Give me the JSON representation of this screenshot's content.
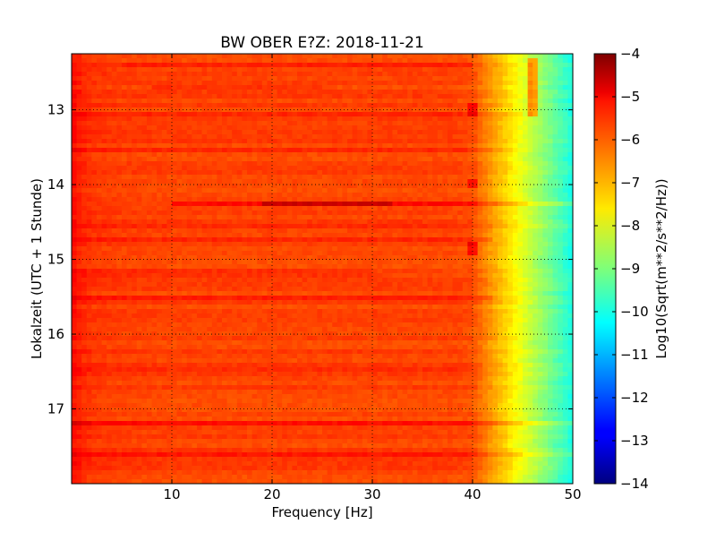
{
  "chart_data": {
    "type": "heatmap",
    "title": "BW OBER E?Z: 2018-11-21",
    "xlabel": "Frequency [Hz]",
    "ylabel": "Lokalzeit (UTC + 1 Stunde)",
    "xlim": [
      0,
      50
    ],
    "ylim": [
      12.25,
      18.0
    ],
    "y_inverted": true,
    "x_ticks": [
      10,
      20,
      30,
      40,
      50
    ],
    "x_tick_labels": [
      "10",
      "20",
      "30",
      "40",
      "50"
    ],
    "y_ticks": [
      13,
      14,
      15,
      16,
      17
    ],
    "y_tick_labels": [
      "13",
      "14",
      "15",
      "16",
      "17"
    ],
    "grid": true,
    "colormap": "jet",
    "colorbar": {
      "label": "Log10(Sqrt(m**2/s**2/Hz))",
      "range": [
        -14,
        -4
      ],
      "ticks": [
        -4,
        -5,
        -6,
        -7,
        -8,
        -9,
        -10,
        -11,
        -12,
        -13,
        -14
      ],
      "tick_labels": [
        "−4",
        "−5",
        "−6",
        "−7",
        "−8",
        "−9",
        "−10",
        "−11",
        "−12",
        "−13",
        "−14"
      ]
    },
    "value_profile_by_frequency": {
      "frequency_hz": [
        0,
        1,
        2,
        5,
        10,
        20,
        30,
        38,
        40,
        41,
        42,
        43,
        44,
        45,
        46,
        47,
        48,
        49,
        50
      ],
      "level": [
        -5.3,
        -5.6,
        -5.75,
        -5.85,
        -5.9,
        -5.9,
        -5.9,
        -5.9,
        -6.0,
        -6.4,
        -6.8,
        -7.2,
        -7.6,
        -8.0,
        -8.4,
        -8.8,
        -9.2,
        -9.6,
        -10.0
      ]
    },
    "horizontal_bands": [
      {
        "time": 12.42,
        "freq_range": [
          5,
          40
        ],
        "delta": 0.25
      },
      {
        "time": 12.68,
        "freq_range": [
          8,
          25
        ],
        "delta": 0.3
      },
      {
        "time": 13.08,
        "freq_range": [
          0,
          45
        ],
        "delta": 0.3
      },
      {
        "time": 13.52,
        "freq_range": [
          0,
          44
        ],
        "delta": 0.25
      },
      {
        "time": 14.25,
        "freq_range": [
          10,
          50
        ],
        "delta": 0.6
      },
      {
        "time": 14.25,
        "freq_range": [
          19,
          32
        ],
        "delta": 0.6
      },
      {
        "time": 14.55,
        "freq_range": [
          0,
          50
        ],
        "delta": 0.35
      },
      {
        "time": 14.75,
        "freq_range": [
          0,
          42
        ],
        "delta": 0.3
      },
      {
        "time": 15.18,
        "freq_range": [
          0,
          30
        ],
        "delta": 0.2
      },
      {
        "time": 15.5,
        "freq_range": [
          0,
          42
        ],
        "delta": 0.3
      },
      {
        "time": 16.48,
        "freq_range": [
          0,
          40
        ],
        "delta": 0.2
      },
      {
        "time": 17.18,
        "freq_range": [
          0,
          50
        ],
        "delta": 0.5
      },
      {
        "time": 17.6,
        "freq_range": [
          0,
          50
        ],
        "delta": 0.35
      }
    ],
    "spectral_lines": [
      {
        "freq": 40,
        "time_range": [
          12.9,
          13.1
        ],
        "delta": 0.7
      },
      {
        "freq": 40,
        "time_range": [
          13.9,
          14.05
        ],
        "delta": 0.7
      },
      {
        "freq": 40,
        "time_range": [
          14.75,
          14.95
        ],
        "delta": 0.8
      },
      {
        "freq": 46,
        "time_range": [
          12.3,
          13.1
        ],
        "delta": 1.6
      }
    ]
  }
}
